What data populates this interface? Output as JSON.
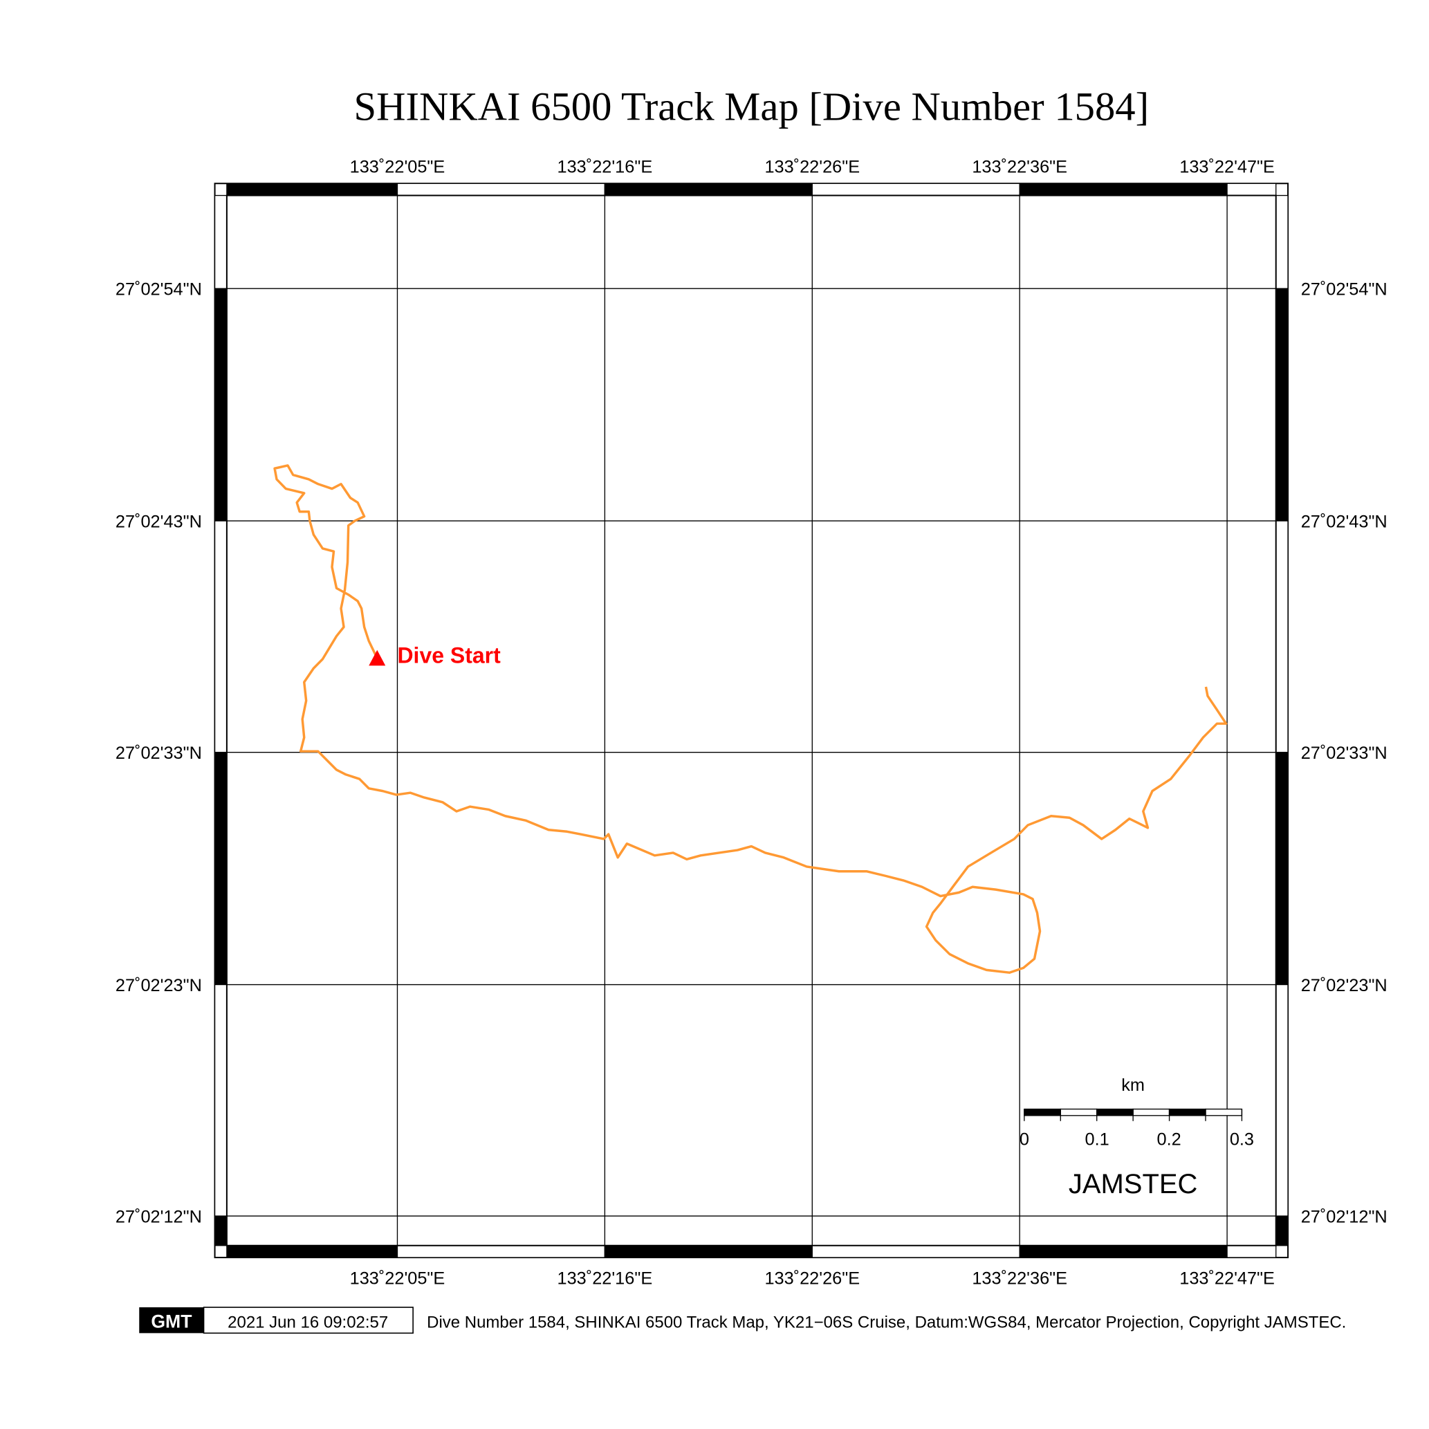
{
  "title": "SHINKAI 6500 Track Map [Dive Number 1584]",
  "lon_labels": [
    "133˚22'05\"E",
    "133˚22'16\"E",
    "133˚22'26\"E",
    "133˚22'36\"E",
    "133˚22'47\"E"
  ],
  "lat_labels": [
    "27˚02'54\"N",
    "27˚02'43\"N",
    "27˚02'33\"N",
    "27˚02'23\"N",
    "27˚02'12\"N"
  ],
  "dive_start_label": "Dive Start",
  "colors": {
    "track": "#ff9933",
    "start": "#ff0000",
    "frame": "#000000"
  },
  "scale_bar": {
    "unit": "km",
    "ticks": [
      "0",
      "0.1",
      "0.2",
      "0.3"
    ],
    "max_km": 0.3
  },
  "agency_label": "JAMSTEC",
  "footer": {
    "logo": "GMT",
    "timestamp": "2021 Jun 16 09:02:57",
    "caption": "Dive Number 1584, SHINKAI 6500 Track Map, YK21−06S Cruise, Datum:WGS84, Mercator Projection, Copyright JAMSTEC."
  },
  "track_units": "arc-seconds past 133°22'E / 27°02'N",
  "track": [
    [
      3.98,
      37.43
    ],
    [
      3.56,
      38.21
    ],
    [
      3.33,
      38.83
    ],
    [
      3.19,
      39.66
    ],
    [
      3.0,
      39.99
    ],
    [
      2.53,
      40.28
    ],
    [
      1.93,
      40.57
    ],
    [
      1.7,
      41.52
    ],
    [
      1.79,
      42.22
    ],
    [
      1.23,
      42.35
    ],
    [
      0.77,
      42.97
    ],
    [
      0.58,
      43.59
    ],
    [
      0.53,
      44.0
    ],
    [
      0.07,
      44.0
    ],
    [
      -0.07,
      44.41
    ],
    [
      0.3,
      44.83
    ],
    [
      -0.63,
      45.03
    ],
    [
      -1.09,
      45.45
    ],
    [
      -1.19,
      45.94
    ],
    [
      -0.53,
      46.07
    ],
    [
      -0.26,
      45.65
    ],
    [
      0.53,
      45.45
    ],
    [
      1.0,
      45.24
    ],
    [
      1.7,
      45.03
    ],
    [
      2.16,
      45.24
    ],
    [
      2.63,
      44.62
    ],
    [
      3.0,
      44.41
    ],
    [
      3.33,
      43.79
    ],
    [
      2.86,
      43.59
    ],
    [
      2.53,
      43.38
    ],
    [
      2.49,
      41.73
    ],
    [
      2.35,
      40.49
    ],
    [
      2.16,
      39.66
    ],
    [
      2.3,
      38.83
    ],
    [
      1.93,
      38.42
    ],
    [
      1.23,
      37.39
    ],
    [
      0.77,
      36.98
    ],
    [
      0.3,
      36.36
    ],
    [
      0.4,
      35.53
    ],
    [
      0.21,
      34.7
    ],
    [
      0.3,
      33.88
    ],
    [
      0.12,
      33.26
    ],
    [
      1.0,
      33.26
    ],
    [
      1.47,
      32.84
    ],
    [
      1.93,
      32.43
    ],
    [
      2.4,
      32.22
    ],
    [
      3.09,
      32.02
    ],
    [
      3.56,
      31.6
    ],
    [
      4.26,
      31.48
    ],
    [
      4.95,
      31.31
    ],
    [
      5.65,
      31.4
    ],
    [
      6.35,
      31.19
    ],
    [
      7.28,
      30.98
    ],
    [
      7.98,
      30.57
    ],
    [
      8.67,
      30.78
    ],
    [
      9.6,
      30.65
    ],
    [
      10.44,
      30.36
    ],
    [
      11.47,
      30.16
    ],
    [
      12.63,
      29.74
    ],
    [
      13.56,
      29.66
    ],
    [
      14.26,
      29.54
    ],
    [
      15.42,
      29.33
    ],
    [
      15.65,
      29.54
    ],
    [
      16.12,
      28.5
    ],
    [
      16.58,
      29.12
    ],
    [
      17.98,
      28.59
    ],
    [
      18.91,
      28.71
    ],
    [
      19.6,
      28.42
    ],
    [
      20.3,
      28.59
    ],
    [
      21.23,
      28.71
    ],
    [
      22.16,
      28.83
    ],
    [
      22.86,
      29.0
    ],
    [
      23.56,
      28.71
    ],
    [
      24.49,
      28.5
    ],
    [
      25.65,
      28.09
    ],
    [
      27.28,
      27.88
    ],
    [
      28.67,
      27.88
    ],
    [
      29.6,
      27.68
    ],
    [
      30.53,
      27.47
    ],
    [
      31.47,
      27.18
    ],
    [
      32.4,
      26.77
    ],
    [
      33.33,
      26.93
    ],
    [
      34.02,
      27.18
    ],
    [
      35.19,
      27.06
    ],
    [
      36.58,
      26.85
    ],
    [
      37.05,
      26.64
    ],
    [
      37.28,
      26.02
    ],
    [
      37.42,
      25.2
    ],
    [
      37.14,
      23.96
    ],
    [
      36.58,
      23.55
    ],
    [
      35.88,
      23.34
    ],
    [
      34.72,
      23.46
    ],
    [
      33.79,
      23.75
    ],
    [
      32.86,
      24.17
    ],
    [
      32.16,
      24.79
    ],
    [
      31.7,
      25.4
    ],
    [
      32.02,
      26.02
    ],
    [
      32.4,
      26.44
    ],
    [
      33.09,
      27.26
    ],
    [
      33.79,
      28.09
    ],
    [
      34.95,
      28.71
    ],
    [
      36.12,
      29.33
    ],
    [
      36.81,
      29.95
    ],
    [
      37.98,
      30.36
    ],
    [
      38.91,
      30.28
    ],
    [
      39.6,
      29.95
    ],
    [
      40.53,
      29.33
    ],
    [
      41.23,
      29.74
    ],
    [
      41.93,
      30.24
    ],
    [
      42.86,
      29.83
    ],
    [
      42.63,
      30.57
    ],
    [
      43.09,
      31.48
    ],
    [
      44.02,
      32.02
    ],
    [
      44.95,
      33.05
    ],
    [
      45.65,
      33.88
    ],
    [
      46.35,
      34.5
    ],
    [
      46.81,
      34.5
    ],
    [
      46.35,
      35.12
    ],
    [
      45.88,
      35.74
    ],
    [
      45.79,
      36.15
    ]
  ]
}
